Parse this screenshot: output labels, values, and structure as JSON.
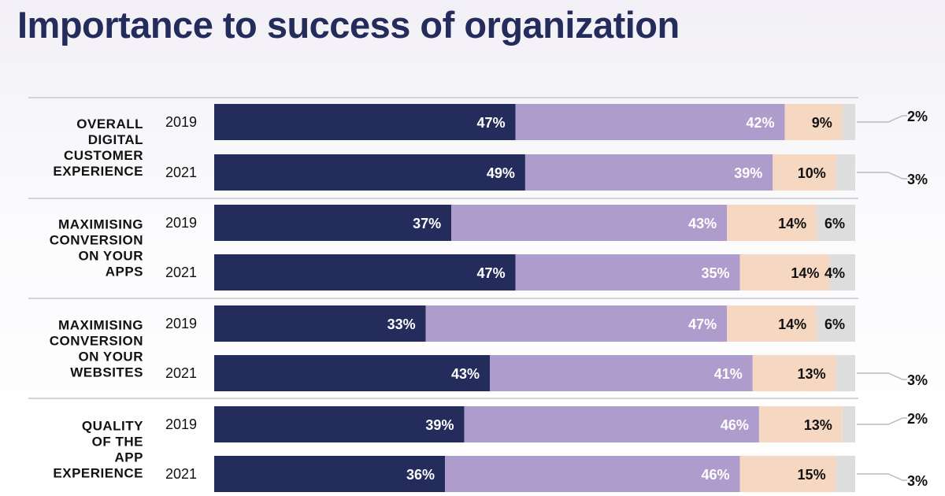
{
  "chart_data": {
    "type": "bar",
    "stacked": true,
    "orientation": "horizontal",
    "title": "Importance to success of organization",
    "colors": [
      "#232c5b",
      "#ad9ccc",
      "#f6d7c1",
      "#dddddd"
    ],
    "groups": [
      {
        "category": "OVERALL DIGITAL CUSTOMER EXPERIENCE",
        "category_lines": [
          "OVERALL",
          "DIGITAL",
          "CUSTOMER",
          "EXPERIENCE"
        ],
        "rows": [
          {
            "year": "2019",
            "values": [
              47,
              42,
              9,
              2
            ],
            "labels": [
              "47%",
              "42%",
              "9%",
              "2%"
            ]
          },
          {
            "year": "2021",
            "values": [
              49,
              39,
              10,
              3
            ],
            "labels": [
              "49%",
              "39%",
              "10%",
              "3%"
            ]
          }
        ]
      },
      {
        "category": "MAXIMISING CONVERSION ON YOUR APPS",
        "category_lines": [
          "MAXIMISING",
          "CONVERSION",
          "ON YOUR",
          "APPS"
        ],
        "rows": [
          {
            "year": "2019",
            "values": [
              37,
              43,
              14,
              6
            ],
            "labels": [
              "37%",
              "43%",
              "14%",
              "6%"
            ]
          },
          {
            "year": "2021",
            "values": [
              47,
              35,
              14,
              4
            ],
            "labels": [
              "47%",
              "35%",
              "14%",
              "4%"
            ]
          }
        ]
      },
      {
        "category": "MAXIMISING CONVERSION ON YOUR WEBSITES",
        "category_lines": [
          "MAXIMISING",
          "CONVERSION",
          "ON YOUR",
          "WEBSITES"
        ],
        "rows": [
          {
            "year": "2019",
            "values": [
              33,
              47,
              14,
              6
            ],
            "labels": [
              "33%",
              "47%",
              "14%",
              "6%"
            ]
          },
          {
            "year": "2021",
            "values": [
              43,
              41,
              13,
              3
            ],
            "labels": [
              "43%",
              "41%",
              "13%",
              "3%"
            ]
          }
        ]
      },
      {
        "category": "QUALITY OF THE APP EXPERIENCE",
        "category_lines": [
          "QUALITY",
          "OF THE",
          "APP",
          "EXPERIENCE"
        ],
        "rows": [
          {
            "year": "2019",
            "values": [
              39,
              46,
              13,
              2
            ],
            "labels": [
              "39%",
              "46%",
              "13%",
              "2%"
            ]
          },
          {
            "year": "2021",
            "values": [
              36,
              46,
              15,
              3
            ],
            "labels": [
              "36%",
              "46%",
              "15%",
              "3%"
            ]
          }
        ]
      }
    ]
  }
}
